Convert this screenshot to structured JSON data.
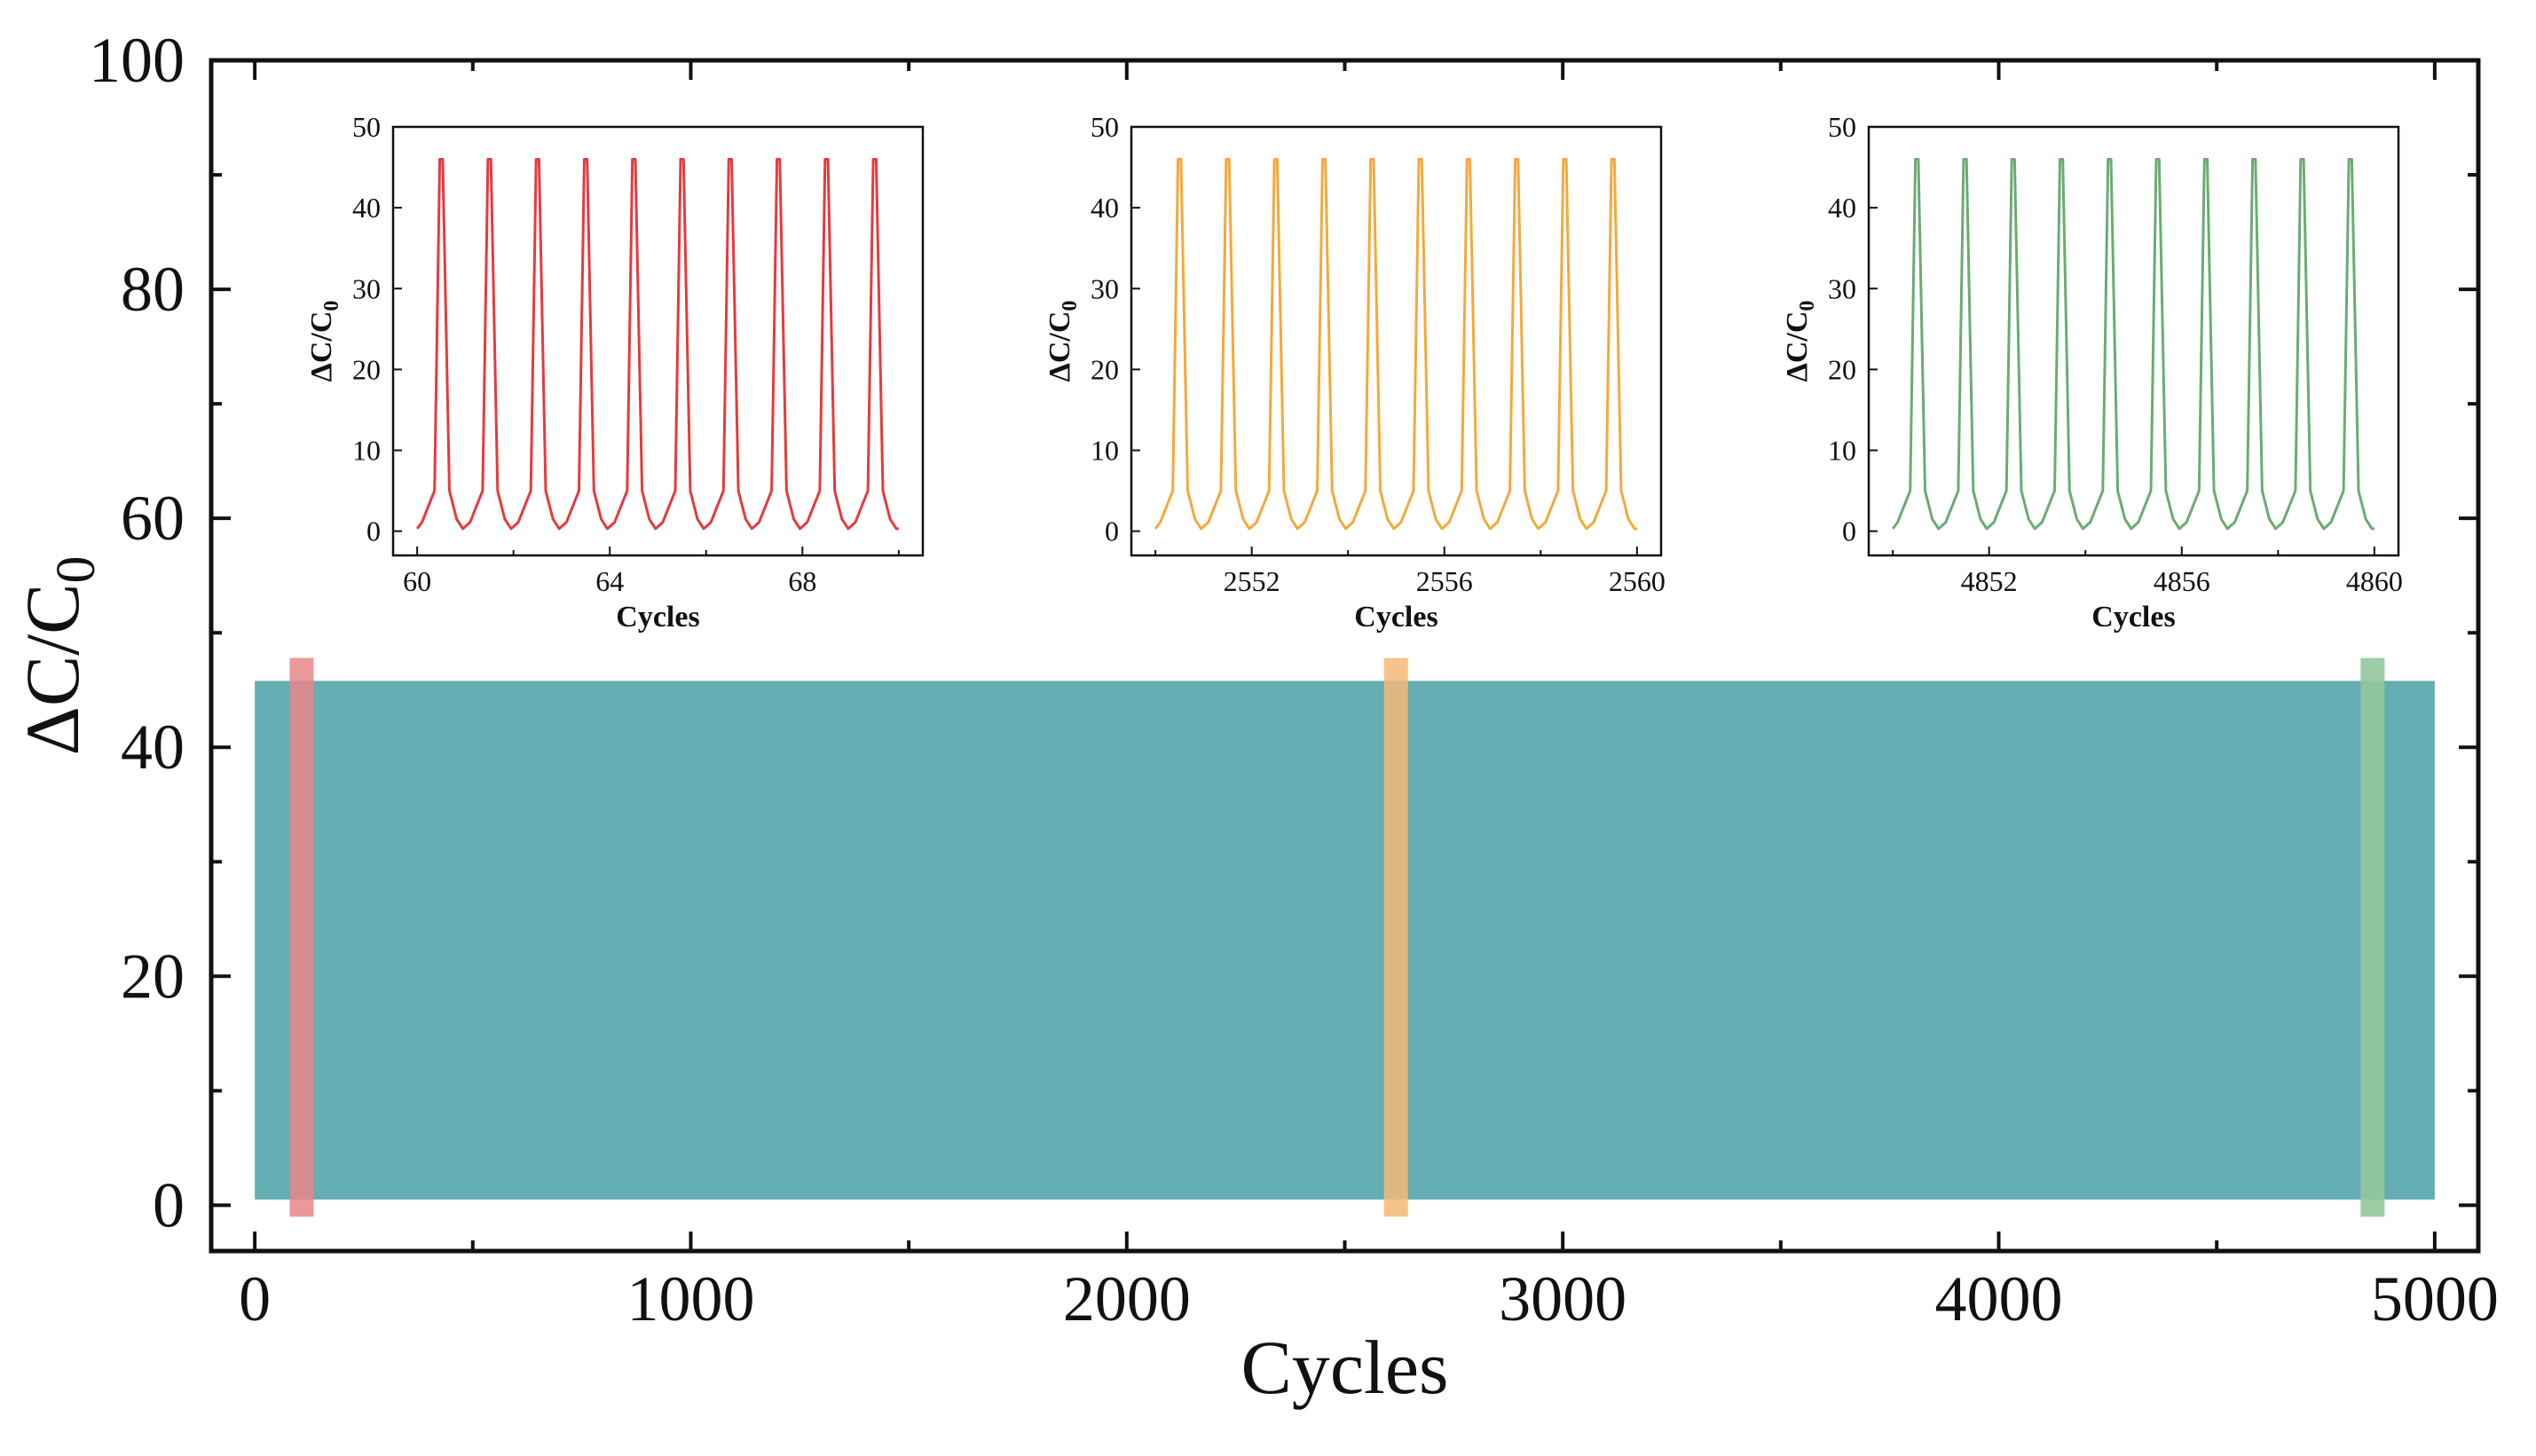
{
  "chart_data": [
    {
      "id": "main",
      "type": "area",
      "description": "Dense oscillating signal over 5000 cycles, appearing as a filled band",
      "xlabel": "Cycles",
      "ylabel_main": "ΔC/C",
      "ylabel_sub": "0",
      "xlim": [
        -100,
        5100
      ],
      "ylim": [
        -4,
        100
      ],
      "xticks": [
        0,
        1000,
        2000,
        3000,
        4000,
        5000
      ],
      "xminor": [
        500,
        1500,
        2500,
        3500,
        4500
      ],
      "yticks": [
        0,
        20,
        40,
        60,
        80,
        100
      ],
      "yminor": [
        10,
        30,
        50,
        70,
        90
      ],
      "band": {
        "x_start": 0,
        "x_end": 5000,
        "y_min": 0.5,
        "y_max": 45.8,
        "color": "#64adb3"
      },
      "highlights": [
        {
          "x_start": 80,
          "x_end": 135,
          "y_min": -1,
          "y_max": 47.8,
          "color": "#e8868a",
          "opacity": 0.85
        },
        {
          "x_start": 2590,
          "x_end": 2645,
          "y_min": -1,
          "y_max": 47.8,
          "color": "#f5b877",
          "opacity": 0.85
        },
        {
          "x_start": 4830,
          "x_end": 4885,
          "y_min": -1,
          "y_max": 47.8,
          "color": "#93c69b",
          "opacity": 0.9
        }
      ]
    },
    {
      "id": "inset-1",
      "type": "line",
      "color": "#e8393d",
      "xlabel": "Cycles",
      "ylabel_main": "ΔC/C",
      "ylabel_sub": "0",
      "xlim": [
        59.5,
        70.5
      ],
      "ylim": [
        -3,
        50
      ],
      "xticks": [
        60,
        64,
        68
      ],
      "xminor": [
        62,
        66,
        70
      ],
      "yticks": [
        0,
        10,
        20,
        30,
        40,
        50
      ],
      "peaks": [
        60.5,
        61.5,
        62.5,
        63.5,
        64.5,
        65.5,
        66.5,
        67.5,
        68.5,
        69.5
      ],
      "peak_value": 46,
      "baseline_value": 0.3,
      "shoulder_value": 5,
      "x_start": 60,
      "x_end": 70
    },
    {
      "id": "inset-2",
      "type": "line",
      "color": "#f5a83a",
      "xlabel": "Cycles",
      "ylabel_main": "ΔC/C",
      "ylabel_sub": "0",
      "xlim": [
        2549.5,
        2560.5
      ],
      "ylim": [
        -3,
        50
      ],
      "xticks": [
        2552,
        2556,
        2560
      ],
      "xminor": [
        2550,
        2554,
        2558
      ],
      "yticks": [
        0,
        10,
        20,
        30,
        40,
        50
      ],
      "peaks": [
        2550.5,
        2551.5,
        2552.5,
        2553.5,
        2554.5,
        2555.5,
        2556.5,
        2557.5,
        2558.5,
        2559.5
      ],
      "peak_value": 46,
      "baseline_value": 0.3,
      "shoulder_value": 5,
      "x_start": 2550,
      "x_end": 2560
    },
    {
      "id": "inset-3",
      "type": "line",
      "color": "#6aab74",
      "xlabel": "Cycles",
      "ylabel_main": "ΔC/C",
      "ylabel_sub": "0",
      "xlim": [
        4849.5,
        4860.5
      ],
      "ylim": [
        -3,
        50
      ],
      "xticks": [
        4852,
        4856,
        4860
      ],
      "xminor": [
        4850,
        4854,
        4858
      ],
      "yticks": [
        0,
        10,
        20,
        30,
        40,
        50
      ],
      "peaks": [
        4850.5,
        4851.5,
        4852.5,
        4853.5,
        4854.5,
        4855.5,
        4856.5,
        4857.5,
        4858.5,
        4859.5
      ],
      "peak_value": 46,
      "baseline_value": 0.3,
      "shoulder_value": 5,
      "x_start": 4850,
      "x_end": 4860
    }
  ]
}
